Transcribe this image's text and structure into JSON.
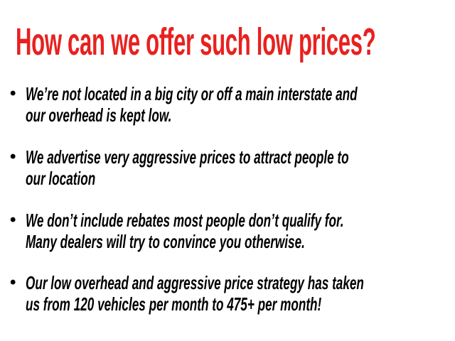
{
  "title": "How can we offer such low prices?",
  "accent_color": "#e8211f",
  "bullets": [
    {
      "lines": [
        "We’re not located in a big city or off a main interstate and",
        "our overhead is kept low."
      ]
    },
    {
      "lines": [
        "We advertise very aggressive prices to attract people to",
        "our location"
      ]
    },
    {
      "lines": [
        "We don’t include rebates most people don’t qualify for.",
        "Many dealers will try to convince you otherwise."
      ]
    },
    {
      "lines": [
        "Our low overhead and aggressive price strategy has taken",
        "us from 120 vehicles per month to 475+ per month!"
      ]
    }
  ]
}
